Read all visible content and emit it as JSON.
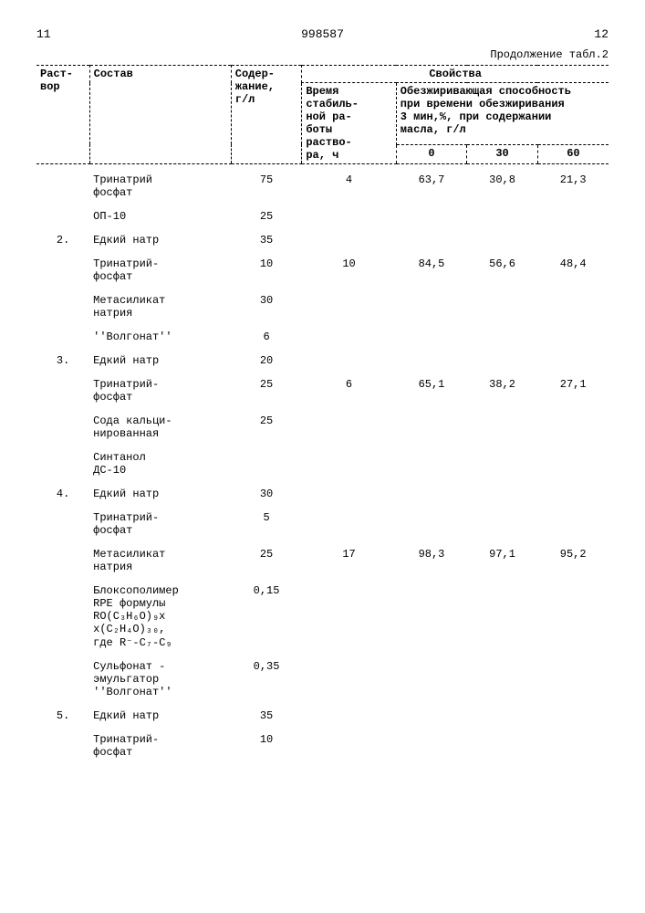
{
  "header": {
    "page_left": "11",
    "doc_number": "998587",
    "page_right": "12",
    "continuation": "Продолжение табл.2"
  },
  "colhead": {
    "rastvor": "Раст-\nвор",
    "sostav": "Состав",
    "soderzh": "Содер-\nжание,\nг/л",
    "svoystva": "Свойства",
    "vremya": "Время\nстабиль-\nной ра-\nботы\nраство-\nра, ч",
    "obez": "Обезжиривающая способность\nпри времени обезжиривания\n3 мин,%, при содержании\nмасла, г/л",
    "c0": "0",
    "c30": "30",
    "c60": "60"
  },
  "rows": [
    {
      "r": "",
      "s": "Тринатрий\nфосфат",
      "c": "75",
      "t": "4",
      "v0": "63,7",
      "v30": "30,8",
      "v60": "21,3"
    },
    {
      "r": "",
      "s": "ОП-10",
      "c": "25",
      "t": "",
      "v0": "",
      "v30": "",
      "v60": ""
    },
    {
      "r": "2.",
      "s": "Едкий натр",
      "c": "35",
      "t": "",
      "v0": "",
      "v30": "",
      "v60": ""
    },
    {
      "r": "",
      "s": "Тринатрий-\nфосфат",
      "c": "10",
      "t": "10",
      "v0": "84,5",
      "v30": "56,6",
      "v60": "48,4"
    },
    {
      "r": "",
      "s": "Метасиликат\nнатрия",
      "c": "30",
      "t": "",
      "v0": "",
      "v30": "",
      "v60": ""
    },
    {
      "r": "",
      "s": "''Волгонат''",
      "c": "6",
      "t": "",
      "v0": "",
      "v30": "",
      "v60": ""
    },
    {
      "r": "3.",
      "s": "Едкий натр",
      "c": "20",
      "t": "",
      "v0": "",
      "v30": "",
      "v60": ""
    },
    {
      "r": "",
      "s": "Тринатрий-\nфосфат",
      "c": "25",
      "t": "6",
      "v0": "65,1",
      "v30": "38,2",
      "v60": "27,1"
    },
    {
      "r": "",
      "s": "Сода кальци-\nнированная",
      "c": "25",
      "t": "",
      "v0": "",
      "v30": "",
      "v60": ""
    },
    {
      "r": "",
      "s": "Синтанол\nДС-10",
      "c": "",
      "t": "",
      "v0": "",
      "v30": "",
      "v60": ""
    },
    {
      "r": "4.",
      "s": "Едкий натр",
      "c": "30",
      "t": "",
      "v0": "",
      "v30": "",
      "v60": ""
    },
    {
      "r": "",
      "s": "Тринатрий-\nфосфат",
      "c": "5",
      "t": "",
      "v0": "",
      "v30": "",
      "v60": ""
    },
    {
      "r": "",
      "s": "Метасиликат\nнатрия",
      "c": "25",
      "t": "17",
      "v0": "98,3",
      "v30": "97,1",
      "v60": "95,2"
    },
    {
      "r": "",
      "s": "Блоксополимер\nRPE формулы\nRO(C₃H₆O)₉x\nx(C₂H₄O)₃₀,\nгде R⁻-C₇-C₉",
      "c": "0,15",
      "t": "",
      "v0": "",
      "v30": "",
      "v60": ""
    },
    {
      "r": "",
      "s": "Сульфонат -\nэмульгатор\n''Волгонат''",
      "c": "0,35",
      "t": "",
      "v0": "",
      "v30": "",
      "v60": ""
    },
    {
      "r": "5.",
      "s": "Едкий натр",
      "c": "35",
      "t": "",
      "v0": "",
      "v30": "",
      "v60": ""
    },
    {
      "r": "",
      "s": "Тринатрий-\nфосфат",
      "c": "10",
      "t": "",
      "v0": "",
      "v30": "",
      "v60": ""
    }
  ]
}
